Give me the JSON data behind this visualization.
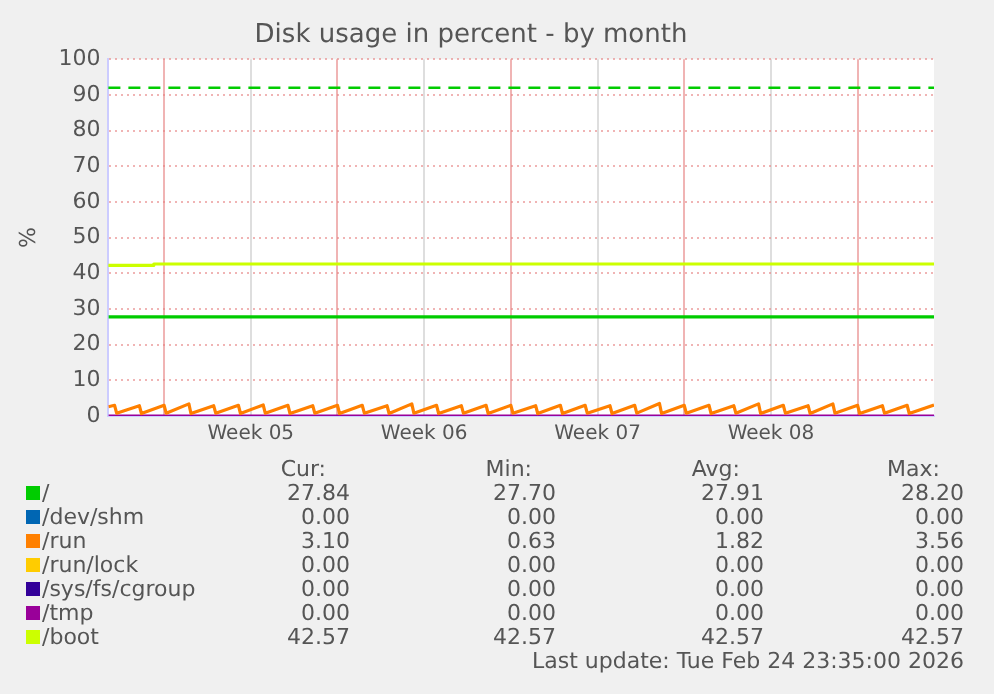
{
  "chart_data": {
    "type": "line",
    "title": "Disk usage in percent - by month",
    "ylabel": "%",
    "xlim": [
      "2026-01-23T18:00",
      "2026-02-26T02:00"
    ],
    "xticks": [
      {
        "value": "2026-01-26",
        "label": null
      },
      {
        "value": "2026-01-29T12:00",
        "label": "Week 05"
      },
      {
        "value": "2026-02-02",
        "label": null
      },
      {
        "value": "2026-02-05T12:00",
        "label": "Week 06"
      },
      {
        "value": "2026-02-09",
        "label": null
      },
      {
        "value": "2026-02-12T12:00",
        "label": "Week 07"
      },
      {
        "value": "2026-02-16",
        "label": null
      },
      {
        "value": "2026-02-19T12:00",
        "label": "Week 08"
      },
      {
        "value": "2026-02-23",
        "label": null
      }
    ],
    "ylim": [
      0,
      100
    ],
    "yticks": [
      0,
      10,
      20,
      30,
      40,
      50,
      60,
      70,
      80,
      90,
      100
    ],
    "grid": true,
    "legend": "bottom",
    "marker": "none",
    "line_style": "solid",
    "ref_lines": [
      {
        "axis": "y",
        "value": 92,
        "color": "#00cc00",
        "line_style": "dashed"
      }
    ],
    "series": [
      {
        "name": "/",
        "color": "#00cc00",
        "x": [
          "2026-01-23T18:00",
          "2026-02-26T02:00"
        ],
        "values": [
          27.8,
          27.8
        ]
      },
      {
        "name": "/dev/shm",
        "color": "#0066b3"
      },
      {
        "name": "/run",
        "color": "#ff8000",
        "x": [
          "2026-01-23T18:00",
          "2026-01-24",
          "2026-01-24T02:00",
          "2026-01-25",
          "2026-01-25T02:00",
          "2026-01-26",
          "2026-01-26T02:00",
          "2026-01-27",
          "2026-01-27T02:00",
          "2026-01-28",
          "2026-01-28T02:00",
          "2026-01-29",
          "2026-01-29T02:00",
          "2026-01-30",
          "2026-01-30T02:00",
          "2026-01-31",
          "2026-01-31T02:00",
          "2026-02-01",
          "2026-02-01T02:00",
          "2026-02-02",
          "2026-02-02T02:00",
          "2026-02-03",
          "2026-02-03T02:00",
          "2026-02-04",
          "2026-02-04T02:00",
          "2026-02-05",
          "2026-02-05T02:00",
          "2026-02-06",
          "2026-02-06T02:00",
          "2026-02-07",
          "2026-02-07T02:00",
          "2026-02-08",
          "2026-02-08T02:00",
          "2026-02-09",
          "2026-02-09T02:00",
          "2026-02-10",
          "2026-02-10T02:00",
          "2026-02-11",
          "2026-02-11T02:00",
          "2026-02-12",
          "2026-02-12T02:00",
          "2026-02-13",
          "2026-02-13T02:00",
          "2026-02-14",
          "2026-02-14T02:00",
          "2026-02-15",
          "2026-02-15T02:00",
          "2026-02-16",
          "2026-02-16T02:00",
          "2026-02-17",
          "2026-02-17T02:00",
          "2026-02-18",
          "2026-02-18T02:00",
          "2026-02-19",
          "2026-02-19T02:00",
          "2026-02-20",
          "2026-02-20T02:00",
          "2026-02-21",
          "2026-02-21T02:00",
          "2026-02-22",
          "2026-02-22T02:00",
          "2026-02-23",
          "2026-02-23T02:00",
          "2026-02-24",
          "2026-02-24T02:00",
          "2026-02-25",
          "2026-02-25T02:00",
          "2026-02-26T02:00"
        ],
        "values": [
          2.6,
          3.0,
          0.8,
          2.9,
          0.7,
          3.0,
          0.8,
          3.4,
          0.7,
          2.9,
          0.8,
          3.0,
          0.7,
          3.1,
          0.8,
          3.0,
          0.7,
          2.9,
          0.8,
          3.0,
          0.7,
          3.0,
          0.8,
          2.9,
          0.7,
          3.4,
          0.8,
          3.0,
          0.7,
          2.9,
          0.8,
          3.0,
          0.7,
          3.0,
          0.8,
          2.9,
          0.7,
          3.0,
          0.7,
          3.0,
          0.8,
          2.9,
          0.7,
          3.0,
          0.8,
          3.5,
          0.7,
          3.0,
          0.8,
          3.0,
          0.7,
          2.9,
          0.8,
          3.4,
          0.7,
          3.0,
          0.8,
          2.9,
          0.7,
          3.4,
          0.8,
          3.0,
          0.7,
          2.9,
          0.8,
          3.0,
          0.7,
          3.1
        ]
      },
      {
        "name": "/run/lock",
        "color": "#ffcc00"
      },
      {
        "name": "/sys/fs/cgroup",
        "color": "#330099"
      },
      {
        "name": "/tmp",
        "color": "#990099",
        "x": [
          "2026-01-23T18:00",
          "2026-02-26T02:00"
        ],
        "values": [
          0,
          0
        ]
      },
      {
        "name": "/boot",
        "color": "#ccff00",
        "type": "step",
        "x": [
          "2026-01-23T18:00",
          "2026-01-25T14:00",
          "2026-02-12",
          "2026-02-26T02:00"
        ],
        "values": [
          42.7,
          42.2,
          42.6,
          42.6
        ]
      }
    ],
    "annotations": [
      "Cur:",
      "Min:",
      "Avg:",
      "Max:",
      "27.84",
      "27.70",
      "27.91",
      "28.20",
      "0.00",
      "0.00",
      "0.00",
      "0.00",
      "3.10",
      "0.63",
      "1.82",
      "3.56",
      "0.00",
      "0.00",
      "0.00",
      "0.00",
      "0.00",
      "0.00",
      "0.00",
      "0.00",
      "0.00",
      "0.00",
      "0.00",
      "0.00",
      "42.57",
      "42.57",
      "42.57",
      "42.57",
      "Last update: Tue Feb 24 23:35:00 2026"
    ]
  }
}
